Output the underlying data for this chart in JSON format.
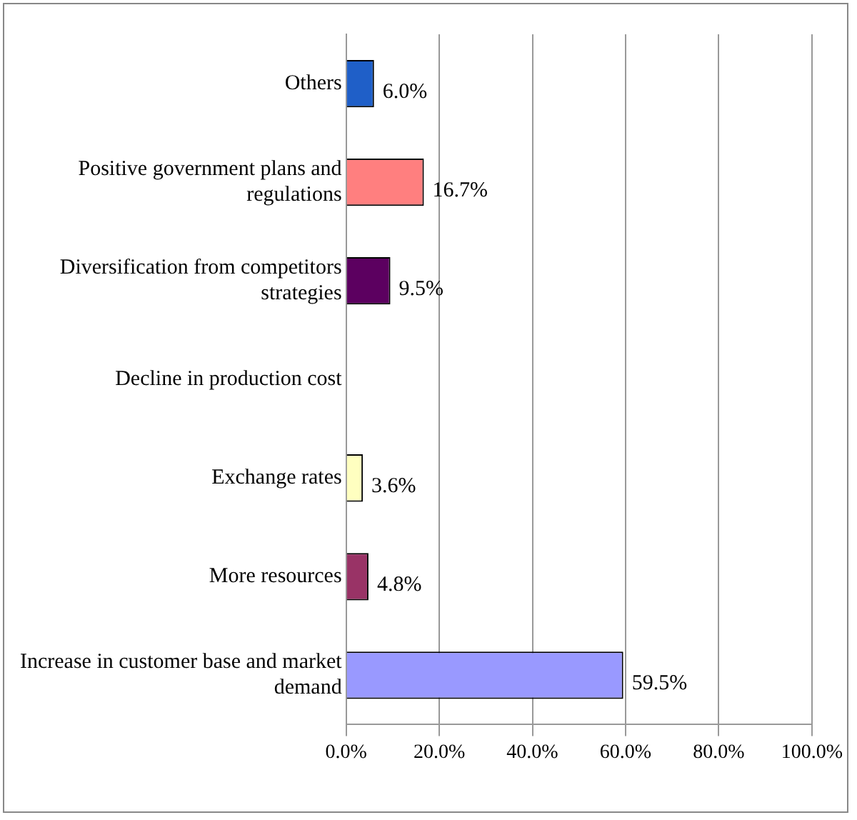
{
  "chart_data": {
    "type": "bar",
    "orientation": "horizontal",
    "categories": [
      "Others",
      "Positive government plans and regulations",
      "Diversification from competitors strategies",
      "Decline in production cost",
      "Exchange rates",
      "More resources",
      "Increase in customer base and market demand"
    ],
    "values": [
      6.0,
      16.7,
      9.5,
      null,
      3.6,
      4.8,
      59.5
    ],
    "colors": [
      "#1f5fc8",
      "#ff7f7f",
      "#5c0060",
      "#ffffff",
      "#ffffc0",
      "#993366",
      "#9999ff"
    ],
    "value_labels": [
      "6.0%",
      "16.7%",
      "9.5%",
      null,
      "3.6%",
      "4.8%",
      "59.5%"
    ],
    "xlim": [
      0,
      100
    ],
    "xticks": [
      {
        "value": 0,
        "label": "0.0%"
      },
      {
        "value": 20,
        "label": "20.0%"
      },
      {
        "value": 40,
        "label": "40.0%"
      },
      {
        "value": 60,
        "label": "60.0%"
      },
      {
        "value": 80,
        "label": "80.0%"
      },
      {
        "value": 100,
        "label": "100.0%"
      }
    ],
    "grid": "x"
  }
}
